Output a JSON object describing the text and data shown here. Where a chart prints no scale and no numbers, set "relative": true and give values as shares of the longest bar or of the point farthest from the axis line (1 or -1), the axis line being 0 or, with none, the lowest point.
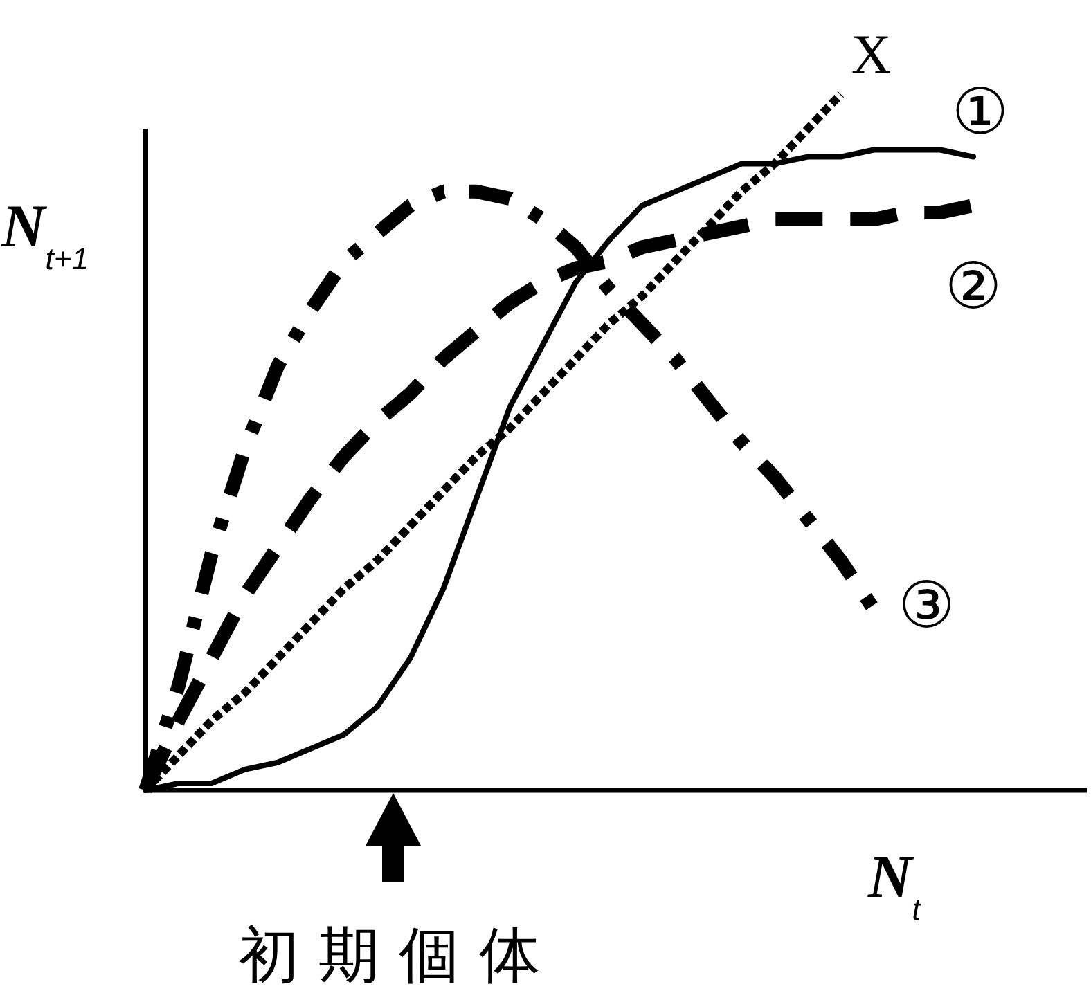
{
  "chart_data": {
    "type": "line",
    "relative": true,
    "xlabel": "N$_{t}$",
    "ylabel": "N$_{t+1}$",
    "annotations": [
      "初期個体"
    ],
    "categories": [
      null,
      null,
      null,
      null,
      null,
      null,
      null,
      null,
      null,
      null,
      null,
      null,
      null,
      null,
      null,
      null,
      null,
      null,
      null,
      null,
      null,
      null,
      null,
      null,
      null,
      null
    ],
    "series": [
      {
        "name": "①",
        "color": "#000000",
        "line_style": "solid",
        "values": [
          0,
          0.01,
          0.01,
          0.03,
          0.04,
          0.06,
          0.08,
          0.12,
          0.19,
          0.29,
          0.42,
          0.55,
          0.64,
          0.73,
          0.79,
          0.84,
          0.86,
          0.88,
          0.9,
          0.9,
          0.91,
          0.91,
          0.92,
          0.92,
          0.92,
          0.91
        ]
      },
      {
        "name": "②",
        "color": "#000000",
        "line_style": "dashed",
        "values": [
          0,
          0.1,
          0.19,
          0.28,
          0.35,
          0.42,
          0.48,
          0.53,
          0.57,
          0.62,
          0.66,
          0.7,
          0.73,
          0.75,
          0.76,
          0.78,
          0.79,
          0.8,
          0.81,
          0.82,
          0.82,
          0.82,
          0.82,
          0.83,
          0.83,
          0.84
        ]
      },
      {
        "name": "③",
        "color": "#000000",
        "line_style": "dashdot",
        "values": [
          0,
          0.15,
          0.34,
          0.49,
          0.61,
          0.69,
          0.76,
          0.8,
          0.84,
          0.86,
          0.86,
          0.85,
          0.82,
          0.78,
          0.72,
          0.67,
          0.62,
          0.56,
          0.5,
          0.45,
          0.39,
          0.33,
          0.26,
          null,
          null,
          null
        ]
      },
      {
        "name": "X",
        "color": "#000000",
        "line_style": "dotted",
        "values": [
          0,
          0.05,
          0.1,
          0.14,
          0.19,
          0.24,
          0.29,
          0.33,
          0.38,
          0.43,
          0.48,
          0.52,
          0.57,
          0.62,
          0.67,
          0.71,
          0.76,
          0.81,
          0.86,
          0.9,
          0.95,
          1,
          null,
          null,
          null,
          null
        ]
      }
    ]
  }
}
